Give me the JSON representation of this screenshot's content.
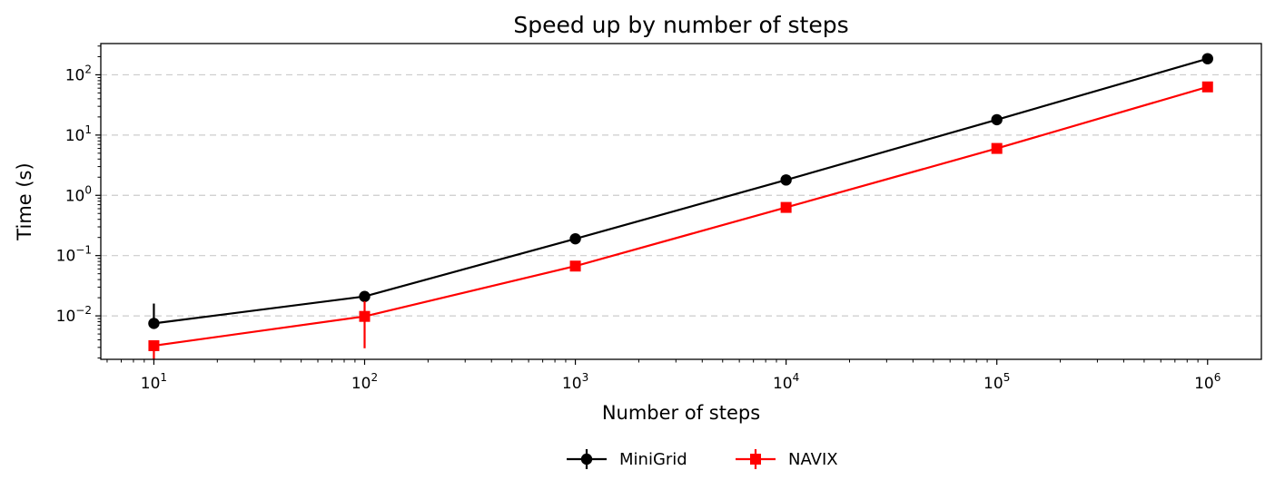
{
  "chart_data": {
    "type": "line",
    "title": "Speed up by number of steps",
    "xlabel": "Number of steps",
    "ylabel": "Time (s)",
    "xscale": "log",
    "yscale": "log",
    "xlim": [
      5.6,
      1800000
    ],
    "ylim": [
      0.0019,
      330
    ],
    "x": [
      10,
      100,
      1000,
      10000,
      100000,
      1000000
    ],
    "x_ticks": [
      {
        "value": 10,
        "base": "10",
        "exp": "1"
      },
      {
        "value": 100,
        "base": "10",
        "exp": "2"
      },
      {
        "value": 1000,
        "base": "10",
        "exp": "3"
      },
      {
        "value": 10000,
        "base": "10",
        "exp": "4"
      },
      {
        "value": 100000,
        "base": "10",
        "exp": "5"
      },
      {
        "value": 1000000,
        "base": "10",
        "exp": "6"
      }
    ],
    "y_ticks": [
      {
        "value": 0.01,
        "base": "10",
        "exp": "−2"
      },
      {
        "value": 0.1,
        "base": "10",
        "exp": "−1"
      },
      {
        "value": 1,
        "base": "10",
        "exp": "0"
      },
      {
        "value": 10,
        "base": "10",
        "exp": "1"
      },
      {
        "value": 100,
        "base": "10",
        "exp": "2"
      }
    ],
    "grid": {
      "y": true,
      "x": false,
      "style": "dashed"
    },
    "legend": {
      "placement": "bottom-center"
    },
    "series": [
      {
        "name": "MiniGrid",
        "color": "#000000",
        "marker": "circle",
        "values": [
          0.0075,
          0.021,
          0.19,
          1.8,
          18,
          185
        ],
        "err_low": [
          0.0075,
          0.021,
          0.19,
          1.8,
          18,
          185
        ],
        "err_high": [
          0.016,
          0.021,
          0.19,
          1.8,
          18,
          185
        ]
      },
      {
        "name": "NAVIX",
        "color": "#ff0000",
        "marker": "square",
        "values": [
          0.0032,
          0.0098,
          0.067,
          0.63,
          6,
          63
        ],
        "err_low": [
          0.0019,
          0.0029,
          0.067,
          0.63,
          6,
          63
        ],
        "err_high": [
          0.0032,
          0.0175,
          0.067,
          0.63,
          6,
          63
        ]
      }
    ]
  }
}
